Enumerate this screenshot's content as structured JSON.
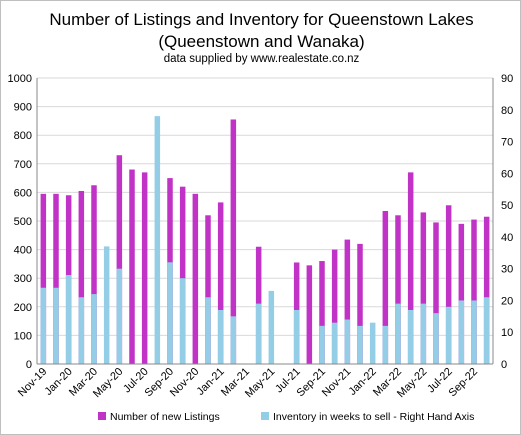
{
  "chart_data": {
    "type": "bar",
    "title": "Number of Listings and Inventory for  Queenstown Lakes",
    "subtitle": "(Queenstown and Wanaka)",
    "source_note": "data supplied by www.realestate.co.nz",
    "ylim_left": [
      0,
      1000
    ],
    "ylim_right": [
      0,
      90
    ],
    "y_ticks_left": [
      "0",
      "100",
      "200",
      "300",
      "400",
      "500",
      "600",
      "700",
      "800",
      "900",
      "1000"
    ],
    "y_ticks_right": [
      "0",
      "10",
      "20",
      "30",
      "40",
      "50",
      "60",
      "70",
      "80",
      "90"
    ],
    "grid": true,
    "legend_position": "bottom",
    "x_tick_labels": [
      "Nov-19",
      "Jan-20",
      "Mar-20",
      "May-20",
      "Jul-20",
      "Sep-20",
      "Nov-20",
      "Jan-21",
      "Mar-21",
      "May-21",
      "Jul-21",
      "Sep-21",
      "Nov-21",
      "Jan-22",
      "Mar-22",
      "May-22",
      "Jul-22",
      "Sep-22"
    ],
    "categories": [
      "Nov-19",
      "Dec-19",
      "Jan-20",
      "Feb-20",
      "Mar-20",
      "Apr-20",
      "May-20",
      "Jun-20",
      "Jul-20",
      "Aug-20",
      "Sep-20",
      "Oct-20",
      "Nov-20",
      "Dec-20",
      "Jan-21",
      "Feb-21",
      "Mar-21",
      "Apr-21",
      "May-21",
      "Jun-21",
      "Jul-21",
      "Aug-21",
      "Sep-21",
      "Oct-21",
      "Nov-21",
      "Dec-21",
      "Jan-22",
      "Feb-22",
      "Mar-22",
      "Apr-22",
      "May-22",
      "Jun-22",
      "Jul-22",
      "Aug-22",
      "Sep-22",
      "Oct-22"
    ],
    "series": [
      {
        "name": "Number of new Listings",
        "axis": "left",
        "color": "#c033c6",
        "values": [
          595,
          595,
          590,
          605,
          625,
          null,
          730,
          680,
          670,
          null,
          650,
          620,
          595,
          520,
          565,
          855,
          null,
          410,
          null,
          null,
          355,
          345,
          360,
          400,
          435,
          420,
          null,
          535,
          520,
          670,
          530,
          495,
          555,
          490,
          505,
          515
        ]
      },
      {
        "name": "Inventory in weeks to sell - Right Hand Axis",
        "axis": "right",
        "color": "#93cde6",
        "values": [
          24,
          24,
          28,
          21,
          22,
          37,
          30,
          null,
          null,
          78,
          32,
          27,
          null,
          21,
          17,
          15,
          null,
          19,
          23,
          null,
          17,
          null,
          12,
          13,
          14,
          12,
          13,
          12,
          19,
          17,
          19,
          16,
          18,
          20,
          20,
          21
        ]
      }
    ]
  }
}
